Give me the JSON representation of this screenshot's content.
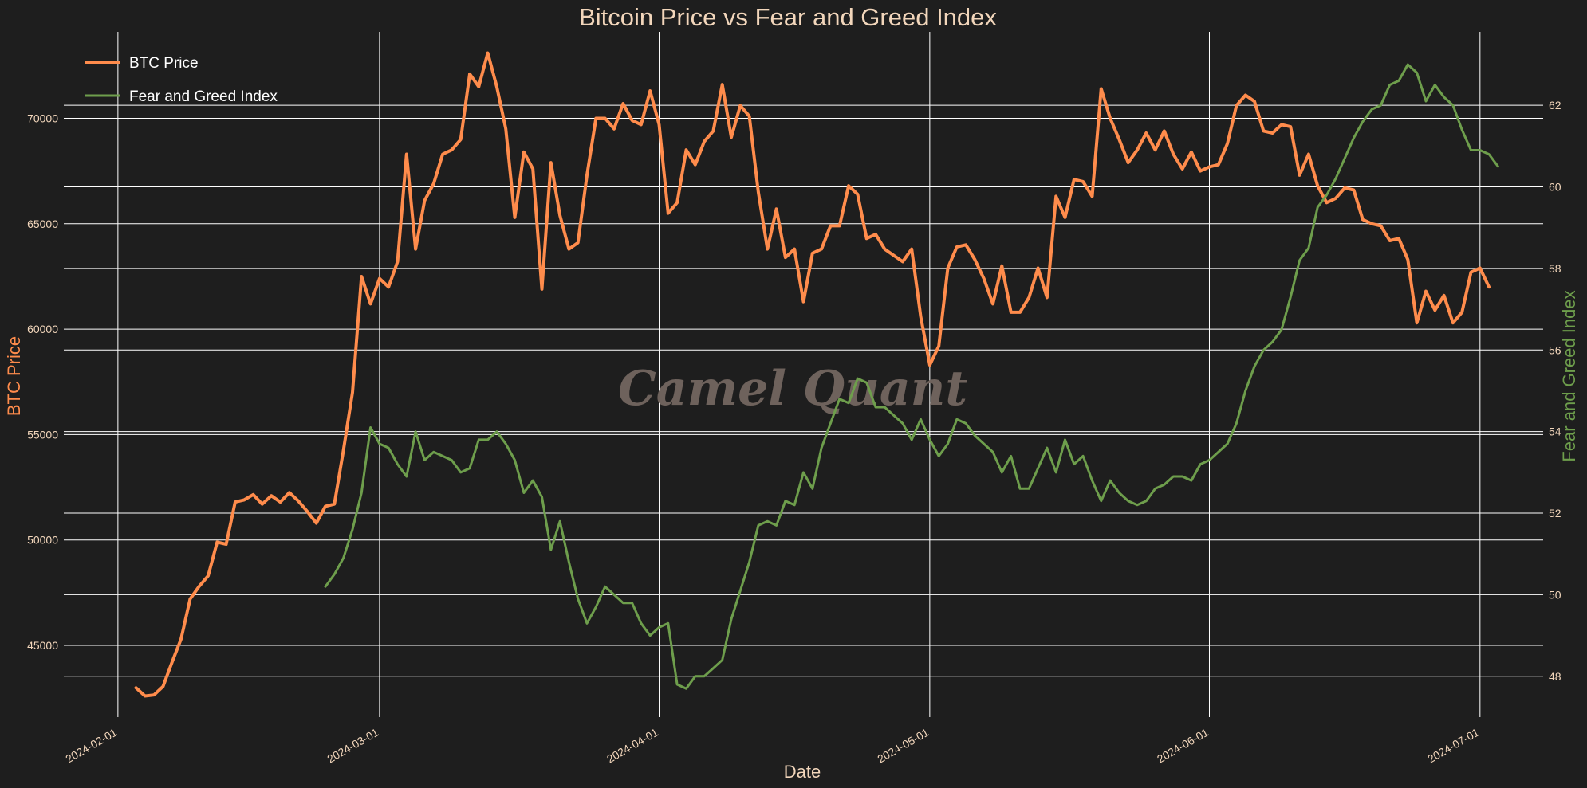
{
  "chart_data": {
    "type": "line",
    "title": "Bitcoin Price vs Fear and Greed Index",
    "xlabel": "Date",
    "ylabel": "BTC Price",
    "ylabel_right": "Fear and Greed Index",
    "watermark": "Camel Quant",
    "x_ticks": [
      "2024-02-01",
      "2024-03-01",
      "2024-04-01",
      "2024-05-01",
      "2024-06-01",
      "2024-07-01"
    ],
    "y_ticks_left": [
      45000,
      50000,
      55000,
      60000,
      65000,
      70000
    ],
    "y_ticks_right": [
      48,
      50,
      52,
      54,
      56,
      58,
      60,
      62
    ],
    "ylim_left": [
      41600,
      74100
    ],
    "ylim_right": [
      47.0,
      63.8
    ],
    "xlim": [
      "2024-01-26",
      "2024-07-08"
    ],
    "grid": true,
    "legend": "top-left",
    "colors": {
      "btc": "#ff8c4c",
      "fng": "#6e9e4c",
      "background": "#1e1e1e",
      "text": "#f2d6bb"
    },
    "series": [
      {
        "name": "BTC Price",
        "axis": "left",
        "start": "2024-02-03",
        "values": [
          42990,
          42600,
          42650,
          43050,
          44200,
          45300,
          47200,
          47800,
          48300,
          49900,
          49800,
          51800,
          51900,
          52150,
          51700,
          52100,
          51800,
          52250,
          51850,
          51350,
          50800,
          51600,
          51700,
          54250,
          57000,
          62500,
          61200,
          62400,
          62000,
          63200,
          68300,
          63800,
          66100,
          66900,
          68300,
          68500,
          69000,
          72100,
          71500,
          73100,
          71500,
          69500,
          65300,
          68400,
          67600,
          61900,
          67900,
          65400,
          63800,
          64100,
          67300,
          70000,
          70000,
          69500,
          70700,
          69900,
          69700,
          71300,
          69700,
          65500,
          66000,
          68500,
          67800,
          68900,
          69400,
          71600,
          69100,
          70600,
          70100,
          66500,
          63800,
          65700,
          63400,
          63800,
          61300,
          63600,
          63800,
          64900,
          64900,
          66800,
          66400,
          64300,
          64500,
          63800,
          63500,
          63200,
          63800,
          60600,
          58300,
          59200,
          62900,
          63900,
          64000,
          63300,
          62400,
          61200,
          63000,
          60800,
          60800,
          61500,
          62900,
          61500,
          66300,
          65300,
          67100,
          67000,
          66300,
          71400,
          70000,
          69000,
          67900,
          68500,
          69300,
          68500,
          69400,
          68300,
          67600,
          68400,
          67500,
          67700,
          67800,
          68800,
          70600,
          71100,
          70800,
          69400,
          69300,
          69700,
          69600,
          67300,
          68300,
          66800,
          66000,
          66200,
          66700,
          66600,
          65200,
          65000,
          64900,
          64200,
          64300,
          63300,
          60300,
          61800,
          60900,
          61600,
          60300,
          60800,
          62700,
          62900,
          62000
        ]
      },
      {
        "name": "Fear and Greed Index",
        "axis": "right",
        "start": "2024-02-24",
        "values": [
          50.2,
          50.5,
          50.9,
          51.6,
          52.5,
          54.1,
          53.7,
          53.6,
          53.2,
          52.9,
          54.0,
          53.3,
          53.5,
          53.4,
          53.3,
          53.0,
          53.1,
          53.8,
          53.8,
          54.0,
          53.7,
          53.3,
          52.5,
          52.8,
          52.4,
          51.1,
          51.8,
          50.8,
          49.9,
          49.3,
          49.7,
          50.2,
          50.0,
          49.8,
          49.8,
          49.3,
          49.0,
          49.2,
          49.3,
          47.8,
          47.7,
          48.0,
          48.0,
          48.2,
          48.4,
          49.4,
          50.1,
          50.8,
          51.7,
          51.8,
          51.7,
          52.3,
          52.2,
          53.0,
          52.6,
          53.6,
          54.2,
          54.8,
          54.7,
          55.3,
          55.2,
          54.6,
          54.6,
          54.4,
          54.2,
          53.8,
          54.3,
          53.8,
          53.4,
          53.7,
          54.3,
          54.2,
          53.9,
          53.7,
          53.5,
          53.0,
          53.4,
          52.6,
          52.6,
          53.1,
          53.6,
          53.0,
          53.8,
          53.2,
          53.4,
          52.8,
          52.3,
          52.8,
          52.5,
          52.3,
          52.2,
          52.3,
          52.6,
          52.7,
          52.9,
          52.9,
          52.8,
          53.2,
          53.3,
          53.5,
          53.7,
          54.2,
          55.0,
          55.6,
          56.0,
          56.2,
          56.5,
          57.3,
          58.2,
          58.5,
          59.5,
          59.8,
          60.2,
          60.7,
          61.2,
          61.6,
          61.9,
          62.0,
          62.5,
          62.6,
          63.0,
          62.8,
          62.1,
          62.5,
          62.2,
          62.0,
          61.4,
          60.9,
          60.9,
          60.8,
          60.5
        ]
      }
    ]
  }
}
